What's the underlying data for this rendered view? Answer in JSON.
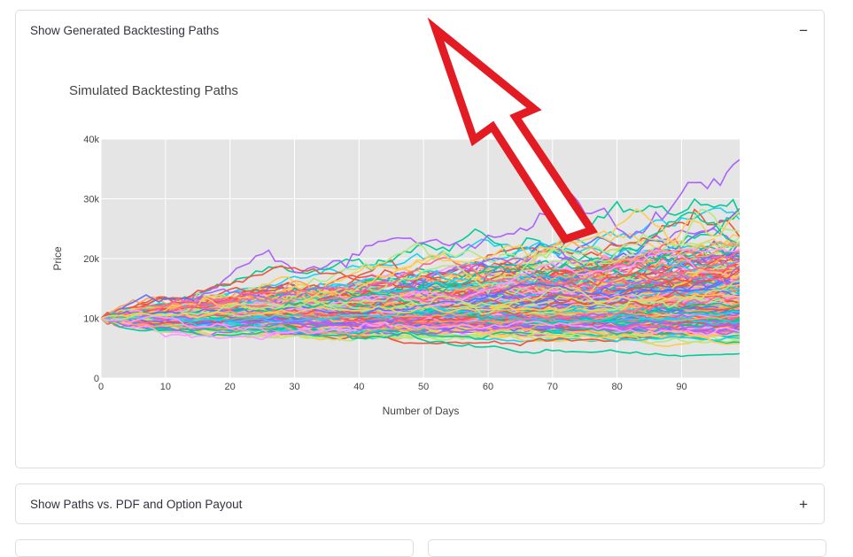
{
  "expanders": [
    {
      "title": "Show Generated Backtesting Paths",
      "toggle": "−",
      "expanded": true
    },
    {
      "title": "Show Paths vs. PDF and Option Payout",
      "toggle": "+",
      "expanded": false
    }
  ],
  "colors": {
    "plot_bg": "#e5e5e5",
    "grid": "#ffffff",
    "arrow": "#e31b23",
    "series_palette": [
      "#636efa",
      "#ef553b",
      "#00cc96",
      "#ab63fa",
      "#ffa15a",
      "#19d3f3",
      "#ff6692",
      "#b6e880",
      "#ff97ff",
      "#fecb52"
    ]
  },
  "chart_data": {
    "type": "line",
    "title": "Simulated Backtesting Paths",
    "xlabel": "Number of Days",
    "ylabel": "Price",
    "xlim": [
      0,
      99
    ],
    "ylim": [
      0,
      40000
    ],
    "x_ticks": [
      {
        "value": 0,
        "label": "0"
      },
      {
        "value": 10,
        "label": "10"
      },
      {
        "value": 20,
        "label": "20"
      },
      {
        "value": 30,
        "label": "30"
      },
      {
        "value": 40,
        "label": "40"
      },
      {
        "value": 50,
        "label": "50"
      },
      {
        "value": 60,
        "label": "60"
      },
      {
        "value": 70,
        "label": "70"
      },
      {
        "value": 80,
        "label": "80"
      },
      {
        "value": 90,
        "label": "90"
      }
    ],
    "y_ticks": [
      {
        "value": 0,
        "label": "0"
      },
      {
        "value": 10000,
        "label": "10k"
      },
      {
        "value": 20000,
        "label": "20k"
      },
      {
        "value": 30000,
        "label": "30k"
      },
      {
        "value": 40000,
        "label": "40k"
      }
    ],
    "grid": true,
    "legend": "none",
    "start_value": 10000,
    "num_paths": 300,
    "num_days": 100
  },
  "annotation": {
    "shape": "arrow",
    "color": "#e31b23",
    "points_to": "expander-title"
  }
}
